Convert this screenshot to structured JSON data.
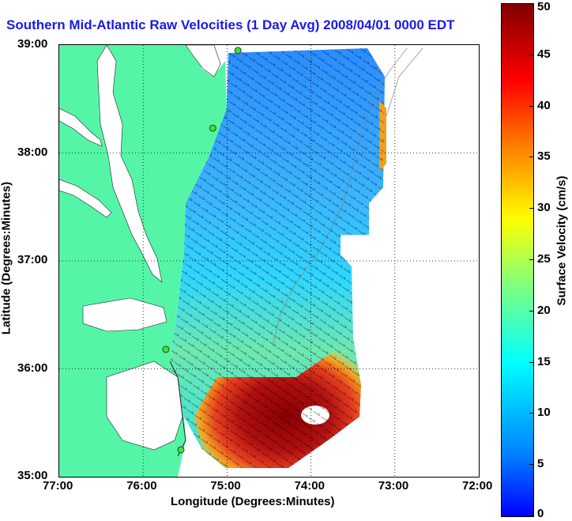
{
  "title": "Southern Mid-Atlantic Raw Velocities (1 Day Avg) 2008/04/01 0000 EDT",
  "x_axis": {
    "label": "Longitude (Degrees:Minutes)",
    "ticks": [
      "77:00",
      "76:00",
      "75:00",
      "74:00",
      "73:00",
      "72:00"
    ]
  },
  "y_axis": {
    "label": "Latitude (Degrees:Minutes)",
    "ticks": [
      "39:00",
      "38:00",
      "37:00",
      "36:00",
      "35:00"
    ]
  },
  "colorbar": {
    "label": "Surface Velocity (cm/s)",
    "ticks": [
      "50",
      "45",
      "40",
      "35",
      "30",
      "25",
      "20",
      "15",
      "10",
      "5",
      "0"
    ],
    "range": [
      0,
      50
    ],
    "colormap": "jet"
  },
  "map": {
    "land_color": "#55f5a8",
    "grid": true,
    "lon_range": [
      -77,
      -72
    ],
    "lat_range": [
      35,
      39
    ],
    "stations": [
      {
        "lon": -74.87,
        "lat": 38.95
      },
      {
        "lon": -75.17,
        "lat": 38.23
      },
      {
        "lon": -75.73,
        "lat": 36.18
      },
      {
        "lon": -75.55,
        "lat": 35.25
      }
    ]
  }
}
